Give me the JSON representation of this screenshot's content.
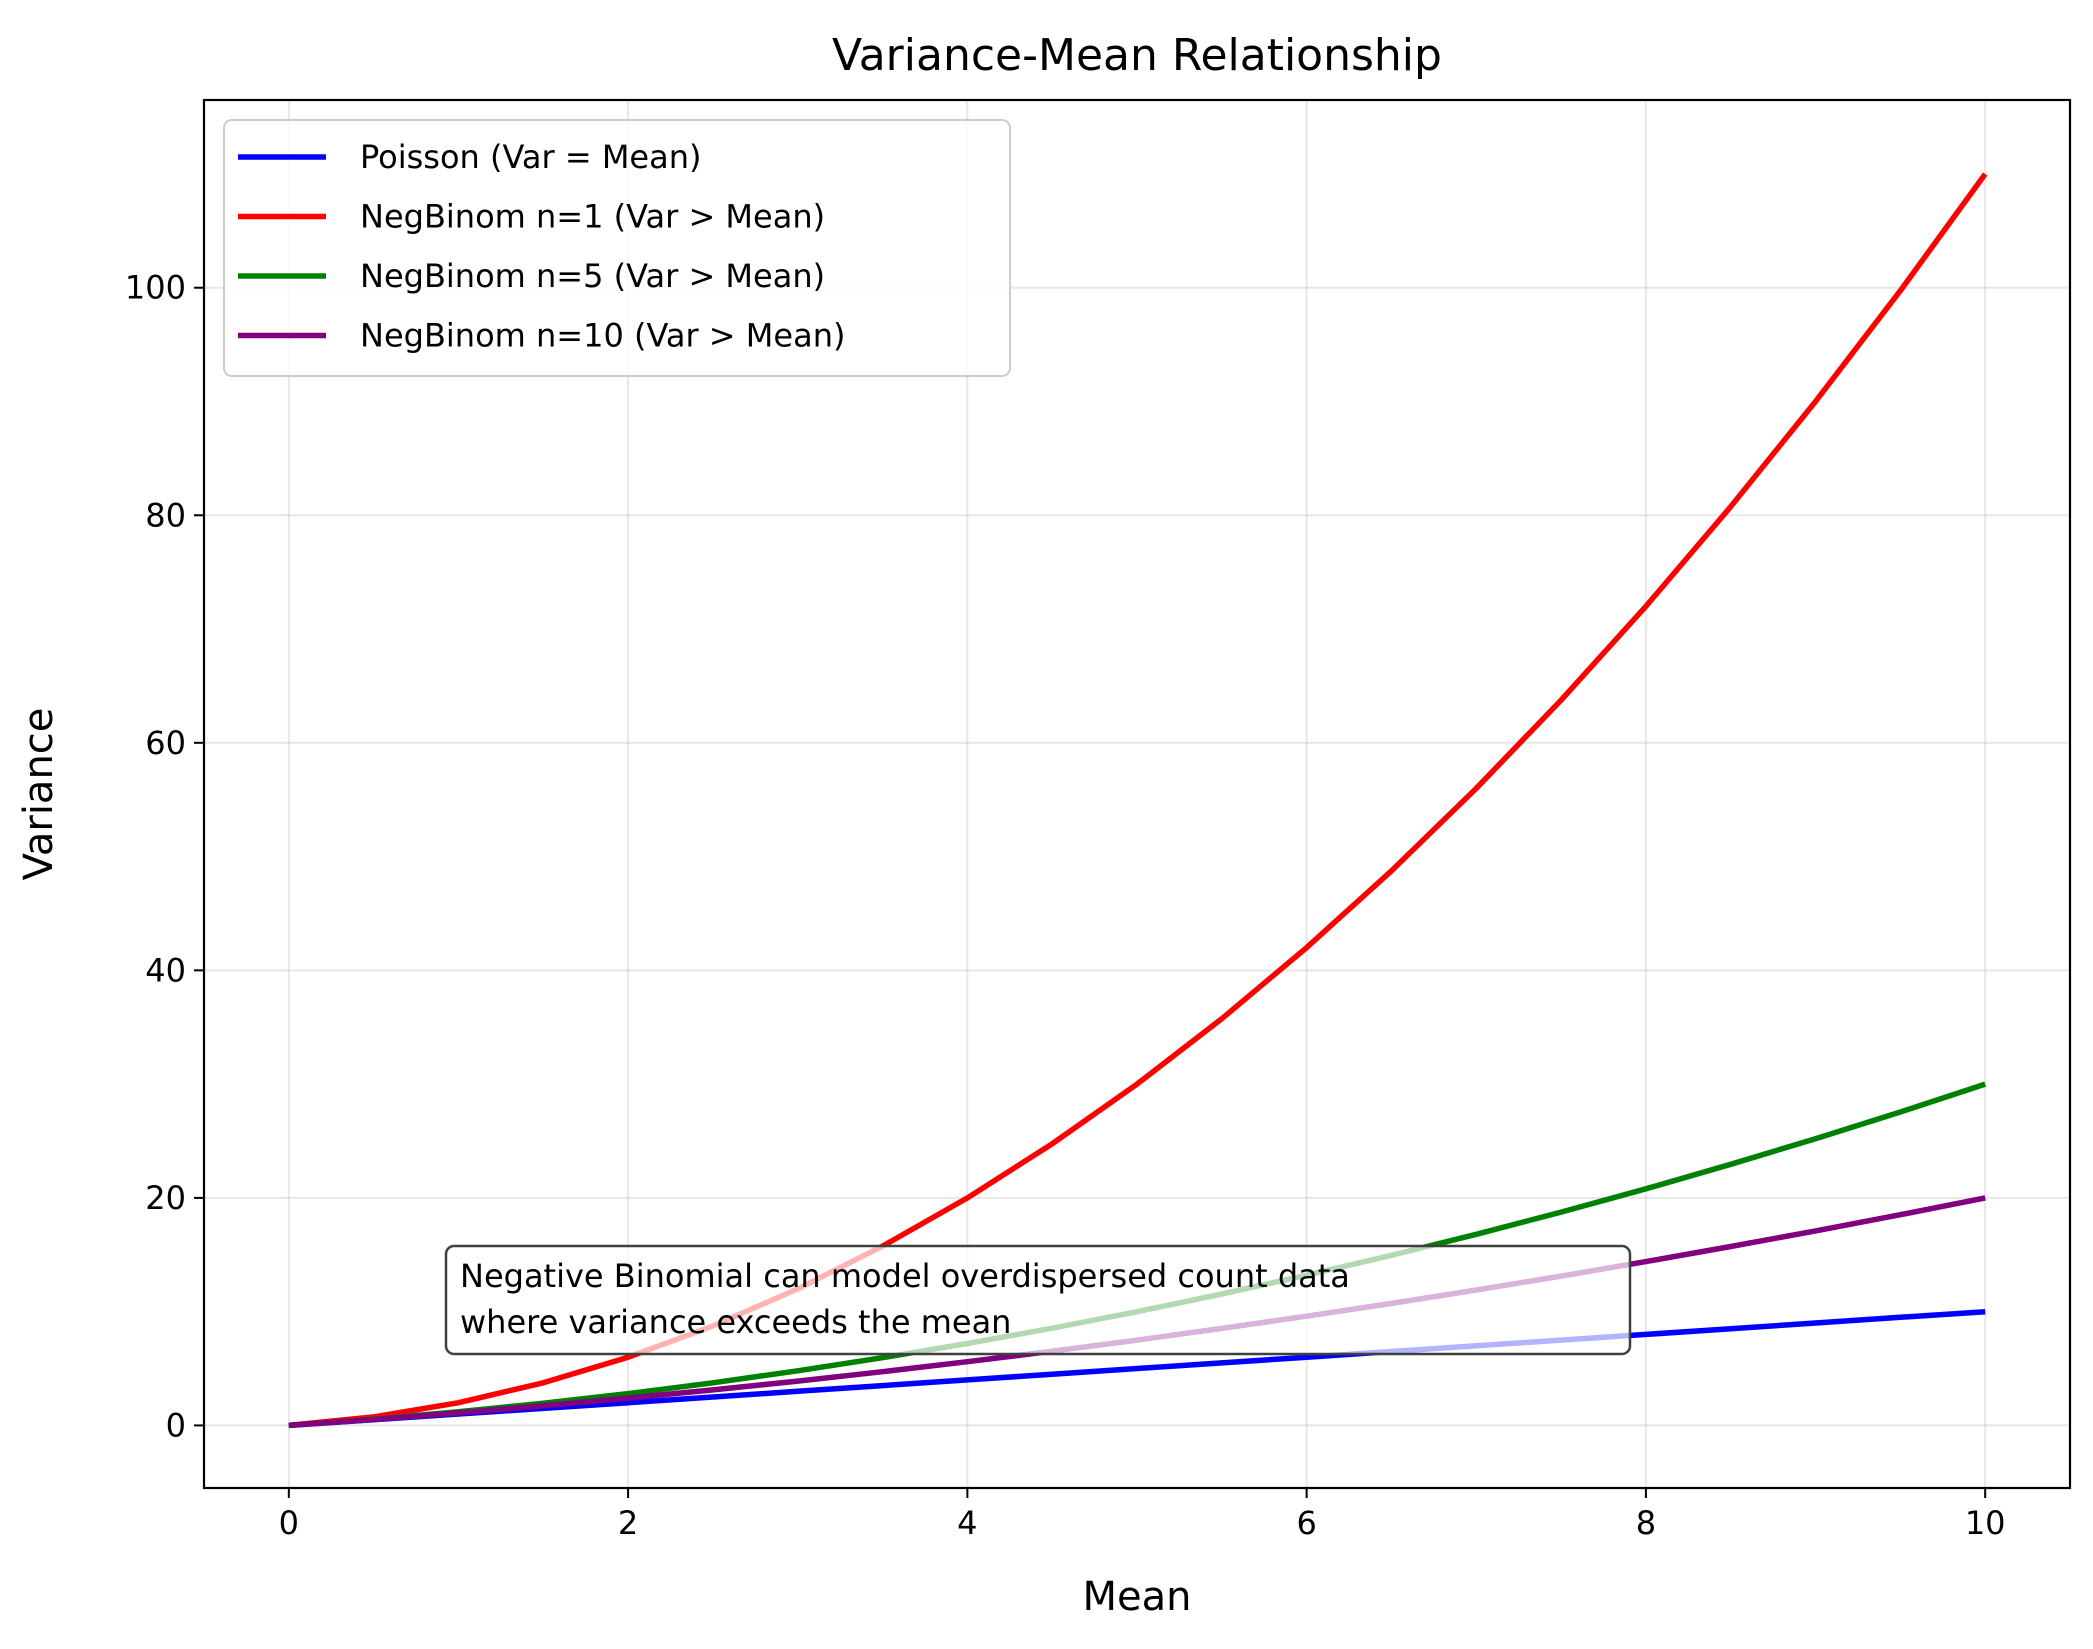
{
  "chart_data": {
    "type": "line",
    "title": "Variance-Mean Relationship",
    "xlabel": "Mean",
    "ylabel": "Variance",
    "xlim": [
      -0.5,
      10.5
    ],
    "ylim": [
      -5.5,
      116.5
    ],
    "x_ticks": [
      0,
      2,
      4,
      6,
      8,
      10
    ],
    "y_ticks": [
      0,
      20,
      40,
      60,
      80,
      100
    ],
    "x_tick_labels": [
      "0",
      "2",
      "4",
      "6",
      "8",
      "10"
    ],
    "y_tick_labels": [
      "0",
      "20",
      "40",
      "60",
      "80",
      "100"
    ],
    "grid": true,
    "legend_position": "upper-left",
    "x": [
      0,
      0.5,
      1,
      1.5,
      2,
      2.5,
      3,
      3.5,
      4,
      4.5,
      5,
      5.5,
      6,
      6.5,
      7,
      7.5,
      8,
      8.5,
      9,
      9.5,
      10
    ],
    "series": [
      {
        "name": "Poisson (Var = Mean)",
        "color": "#0000ff",
        "values": [
          0,
          0.5,
          1,
          1.5,
          2,
          2.5,
          3,
          3.5,
          4,
          4.5,
          5,
          5.5,
          6,
          6.5,
          7,
          7.5,
          8,
          8.5,
          9,
          9.5,
          10
        ]
      },
      {
        "name": "NegBinom n=1 (Var > Mean)",
        "color": "#ff0000",
        "values": [
          0,
          0.75,
          2,
          3.75,
          6,
          8.75,
          12,
          15.75,
          20,
          24.75,
          30,
          35.75,
          42,
          48.75,
          56,
          63.75,
          72,
          80.75,
          90,
          99.75,
          110
        ]
      },
      {
        "name": "NegBinom n=5 (Var > Mean)",
        "color": "#008000",
        "values": [
          0,
          0.55,
          1.2,
          1.95,
          2.8,
          3.75,
          4.8,
          5.95,
          7.2,
          8.55,
          10,
          11.55,
          13.2,
          14.95,
          16.8,
          18.75,
          20.8,
          22.95,
          25.2,
          27.55,
          30
        ]
      },
      {
        "name": "NegBinom n=10 (Var > Mean)",
        "color": "#800080",
        "values": [
          0,
          0.525,
          1.1,
          1.725,
          2.4,
          3.125,
          3.9,
          4.725,
          5.6,
          6.525,
          7.5,
          8.525,
          9.6,
          10.725,
          11.9,
          13.125,
          14.4,
          15.725,
          17.1,
          18.525,
          20
        ]
      }
    ],
    "annotation": {
      "lines": [
        "Negative Binomial can model overdispersed count data",
        "where variance exceeds the mean"
      ],
      "x": 1,
      "y": 8
    }
  }
}
